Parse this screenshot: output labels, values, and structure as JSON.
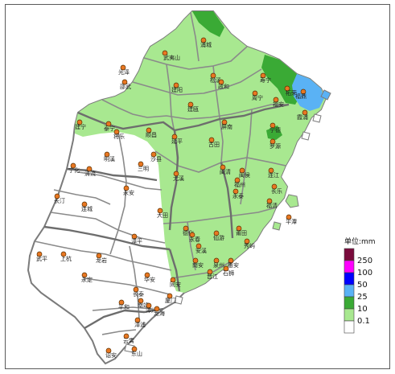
{
  "legend": {
    "title": "单位:mm",
    "items": [
      {
        "label": "250",
        "color": "#7a0b3c"
      },
      {
        "label": "100",
        "color": "#ff00ff"
      },
      {
        "label": "50",
        "color": "#0000ff"
      },
      {
        "label": "25",
        "color": "#5ab2f5"
      },
      {
        "label": "10",
        "color": "#3aaa35"
      },
      {
        "label": "0.1",
        "color": "#a8e890"
      },
      {
        "label": "",
        "color": "#ffffff"
      }
    ]
  },
  "colors": {
    "light_green": "#a8e890",
    "dark_green": "#3aaa35",
    "light_blue": "#5ab2f5",
    "white": "#ffffff",
    "border": "#7b7b7b",
    "station": "#e87722"
  },
  "stations": [
    {
      "name": "浦城"
    },
    {
      "name": "武夷山"
    },
    {
      "name": "光泽"
    },
    {
      "name": "邵武"
    },
    {
      "name": "建阳"
    },
    {
      "name": "松溪"
    },
    {
      "name": "政和"
    },
    {
      "name": "寿宁"
    },
    {
      "name": "柘荣"
    },
    {
      "name": "福鼎"
    },
    {
      "name": "周宁"
    },
    {
      "name": "福安"
    },
    {
      "name": "霞浦"
    },
    {
      "name": "建瓯"
    },
    {
      "name": "屏南"
    },
    {
      "name": "宁德"
    },
    {
      "name": "建宁"
    },
    {
      "name": "泰宁"
    },
    {
      "name": "将乐"
    },
    {
      "name": "顺昌"
    },
    {
      "name": "延平"
    },
    {
      "name": "古田"
    },
    {
      "name": "罗源"
    },
    {
      "name": "明溪"
    },
    {
      "name": "沙县"
    },
    {
      "name": "清流"
    },
    {
      "name": "宁化"
    },
    {
      "name": "三明"
    },
    {
      "name": "尤溪"
    },
    {
      "name": "闽清"
    },
    {
      "name": "闽侯"
    },
    {
      "name": "连江"
    },
    {
      "name": "福州"
    },
    {
      "name": "长乐"
    },
    {
      "name": "永安"
    },
    {
      "name": "永泰"
    },
    {
      "name": "福清"
    },
    {
      "name": "长汀"
    },
    {
      "name": "连城"
    },
    {
      "name": "大田"
    },
    {
      "name": "平潭"
    },
    {
      "name": "德化"
    },
    {
      "name": "永春"
    },
    {
      "name": "仙游"
    },
    {
      "name": "莆田"
    },
    {
      "name": "秀屿"
    },
    {
      "name": "漳平"
    },
    {
      "name": "武平"
    },
    {
      "name": "上杭"
    },
    {
      "name": "龙岩"
    },
    {
      "name": "安溪"
    },
    {
      "name": "南安"
    },
    {
      "name": "泉州"
    },
    {
      "name": "惠安"
    },
    {
      "name": "晋江"
    },
    {
      "name": "石狮"
    },
    {
      "name": "永定"
    },
    {
      "name": "华安"
    },
    {
      "name": "同安"
    },
    {
      "name": "长泰"
    },
    {
      "name": "厦门"
    },
    {
      "name": "南靖"
    },
    {
      "name": "漳州"
    },
    {
      "name": "龙海"
    },
    {
      "name": "平和"
    },
    {
      "name": "漳浦"
    },
    {
      "name": "云霄"
    },
    {
      "name": "东山"
    },
    {
      "name": "诏安"
    }
  ]
}
